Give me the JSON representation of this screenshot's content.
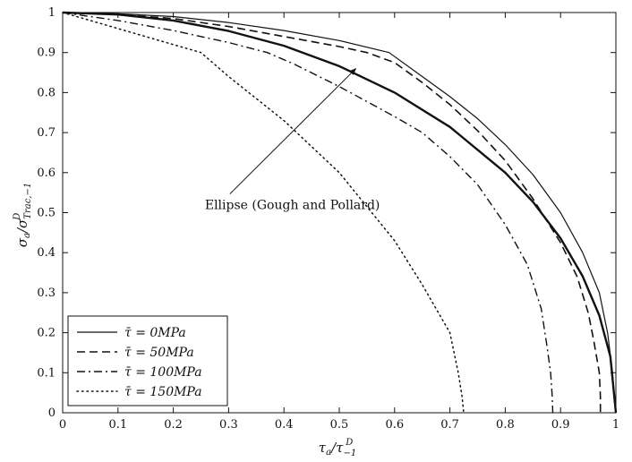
{
  "chart_data": {
    "type": "line",
    "title": "",
    "xlabel": "τa/τ−1D",
    "ylabel": "σa/σTrac,−1D",
    "xlim": [
      0,
      1
    ],
    "ylim": [
      0,
      1
    ],
    "x_ticks": [
      "0",
      "0.1",
      "0.2",
      "0.3",
      "0.4",
      "0.5",
      "0.6",
      "0.7",
      "0.8",
      "0.9",
      "1"
    ],
    "y_ticks": [
      "0",
      "0.1",
      "0.2",
      "0.3",
      "0.4",
      "0.5",
      "0.6",
      "0.7",
      "0.8",
      "0.9",
      "1"
    ],
    "grid": false,
    "legend_position": "bottom-left",
    "series": [
      {
        "name": "τ̄ = 0MPa",
        "style": "solid",
        "points": [
          [
            0,
            1
          ],
          [
            0.1,
            0.997
          ],
          [
            0.2,
            0.99
          ],
          [
            0.3,
            0.975
          ],
          [
            0.4,
            0.955
          ],
          [
            0.5,
            0.93
          ],
          [
            0.59,
            0.9
          ],
          [
            0.65,
            0.84
          ],
          [
            0.7,
            0.79
          ],
          [
            0.75,
            0.735
          ],
          [
            0.8,
            0.67
          ],
          [
            0.85,
            0.595
          ],
          [
            0.9,
            0.5
          ],
          [
            0.94,
            0.4
          ],
          [
            0.97,
            0.3
          ],
          [
            0.985,
            0.2
          ],
          [
            0.994,
            0.1
          ],
          [
            0.998,
            0.02
          ],
          [
            1,
            0
          ]
        ]
      },
      {
        "name": "τ̄ = 50MPa",
        "style": "dashed",
        "points": [
          [
            0,
            1
          ],
          [
            0.1,
            0.995
          ],
          [
            0.2,
            0.985
          ],
          [
            0.3,
            0.965
          ],
          [
            0.4,
            0.94
          ],
          [
            0.5,
            0.915
          ],
          [
            0.55,
            0.9
          ],
          [
            0.6,
            0.875
          ],
          [
            0.65,
            0.825
          ],
          [
            0.7,
            0.77
          ],
          [
            0.75,
            0.705
          ],
          [
            0.8,
            0.63
          ],
          [
            0.85,
            0.535
          ],
          [
            0.9,
            0.425
          ],
          [
            0.93,
            0.34
          ],
          [
            0.95,
            0.25
          ],
          [
            0.96,
            0.18
          ],
          [
            0.97,
            0.1
          ],
          [
            0.972,
            0.04
          ],
          [
            0.972,
            0
          ]
        ]
      },
      {
        "name": "τ̄ = 100MPa",
        "style": "dashdot",
        "points": [
          [
            0,
            1
          ],
          [
            0.05,
            0.99
          ],
          [
            0.1,
            0.98
          ],
          [
            0.2,
            0.955
          ],
          [
            0.3,
            0.925
          ],
          [
            0.37,
            0.9
          ],
          [
            0.42,
            0.87
          ],
          [
            0.5,
            0.815
          ],
          [
            0.6,
            0.74
          ],
          [
            0.65,
            0.7
          ],
          [
            0.7,
            0.64
          ],
          [
            0.75,
            0.57
          ],
          [
            0.8,
            0.47
          ],
          [
            0.84,
            0.37
          ],
          [
            0.865,
            0.26
          ],
          [
            0.875,
            0.17
          ],
          [
            0.882,
            0.1
          ],
          [
            0.885,
            0.04
          ],
          [
            0.886,
            0
          ]
        ]
      },
      {
        "name": "τ̄ = 150MPa",
        "style": "dotted",
        "points": [
          [
            0,
            1
          ],
          [
            0.05,
            0.98
          ],
          [
            0.1,
            0.96
          ],
          [
            0.2,
            0.92
          ],
          [
            0.25,
            0.9
          ],
          [
            0.3,
            0.84
          ],
          [
            0.4,
            0.73
          ],
          [
            0.5,
            0.6
          ],
          [
            0.6,
            0.43
          ],
          [
            0.65,
            0.32
          ],
          [
            0.7,
            0.2
          ],
          [
            0.715,
            0.1
          ],
          [
            0.722,
            0.04
          ],
          [
            0.725,
            0
          ]
        ]
      },
      {
        "name": "",
        "style": "solid-thick",
        "points": [
          [
            0,
            1
          ],
          [
            0.1,
            0.995
          ],
          [
            0.2,
            0.98
          ],
          [
            0.3,
            0.954
          ],
          [
            0.4,
            0.917
          ],
          [
            0.5,
            0.866
          ],
          [
            0.6,
            0.8
          ],
          [
            0.7,
            0.714
          ],
          [
            0.8,
            0.6
          ],
          [
            0.85,
            0.527
          ],
          [
            0.9,
            0.436
          ],
          [
            0.94,
            0.341
          ],
          [
            0.97,
            0.243
          ],
          [
            0.99,
            0.141
          ],
          [
            1,
            0
          ]
        ]
      }
    ],
    "annotations": [
      {
        "text": "Ellipse (Gough and Pollard)",
        "anchor": [
          0.27,
          0.52
        ],
        "arrow_to": [
          0.53,
          0.86
        ]
      }
    ]
  }
}
